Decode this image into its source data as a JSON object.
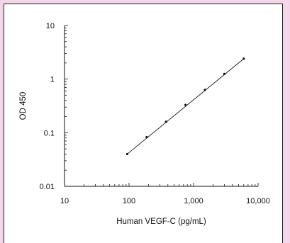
{
  "chart_data": {
    "type": "scatter",
    "title": "",
    "xlabel": "Human VEGF-C (pg/mL)",
    "ylabel": "OD 450",
    "x_scale": "log",
    "y_scale": "log",
    "xlim": [
      10,
      10000
    ],
    "ylim": [
      0.01,
      10
    ],
    "x_tick_labels": [
      "10",
      "100",
      "1,000",
      "10,000"
    ],
    "y_tick_labels": [
      "10",
      "1",
      "0.1",
      "0.01"
    ],
    "grid": false,
    "legend": "none",
    "series": [
      {
        "x": [
          93.75,
          187.5,
          375,
          750,
          1500,
          3000,
          6000
        ],
        "y": [
          0.04,
          0.083,
          0.16,
          0.33,
          0.63,
          1.25,
          2.4
        ]
      }
    ],
    "fit_line": {
      "x": [
        93.75,
        6000
      ],
      "y": [
        0.04,
        2.4
      ]
    },
    "colors": {
      "background": "#f3d7e8",
      "plot": "#ffffff",
      "ink": "#111111"
    }
  }
}
